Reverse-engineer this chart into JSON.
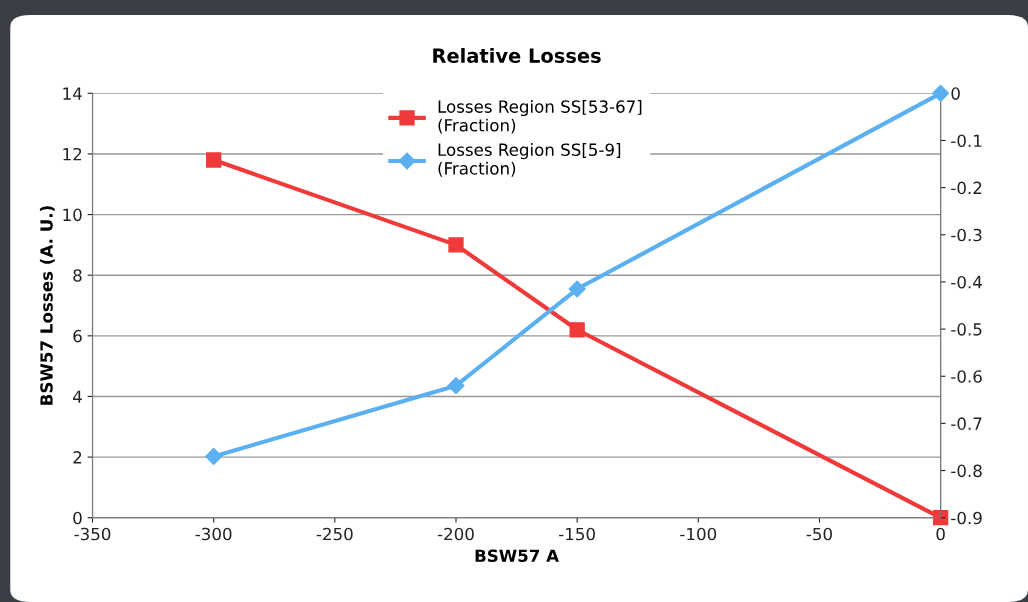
{
  "chart_data": {
    "type": "line",
    "title": "Relative Losses",
    "xlabel": "BSW57 A",
    "ylabel": "BSW57 Losses (A. U.)",
    "x": [
      -300,
      -200,
      -150,
      0
    ],
    "series": [
      {
        "name": "Losses Region SS[53-67]\n(Fraction)",
        "color": "#f03a3a",
        "values": [
          11.8,
          9.0,
          6.2,
          0
        ],
        "marker": "square"
      },
      {
        "name": "Losses Region SS[5-9]\n(Fraction)",
        "color": "#5ab0f0",
        "values": [
          -0.77,
          -0.62,
          -0.415,
          0
        ],
        "marker": "diamond",
        "axis": "y2"
      }
    ],
    "xlim": [
      -350,
      0
    ],
    "xticks": [
      -350,
      -300,
      -250,
      -200,
      -150,
      -100,
      -50,
      0
    ],
    "ylim": [
      0,
      14
    ],
    "yticks": [
      0,
      2,
      4,
      6,
      8,
      10,
      12,
      14
    ],
    "y2lim": [
      -0.9,
      0
    ],
    "y2ticks": [
      {
        "value": -0.9,
        "label": "-0.9"
      },
      {
        "value": -0.8,
        "label": "-0.8"
      },
      {
        "value": -0.7,
        "label": "-0.7"
      },
      {
        "value": -0.6,
        "label": "-0.6"
      },
      {
        "value": -0.5,
        "label": "-0.5"
      },
      {
        "value": -0.4,
        "label": "-0.4"
      },
      {
        "value": -0.3,
        "label": "-0.3"
      },
      {
        "value": -0.2,
        "label": "-0.2"
      },
      {
        "value": -0.1,
        "label": "-0.1"
      },
      0
    ],
    "grid": "y",
    "legend": "top",
    "line_style": "solid"
  }
}
